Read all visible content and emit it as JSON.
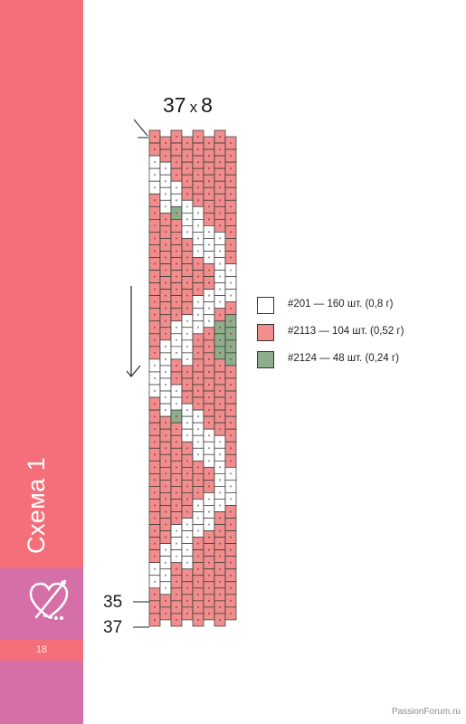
{
  "sidebar": {
    "title": "Схема 1",
    "page_number": "18"
  },
  "scheme": {
    "size_width": "37",
    "size_x": "x",
    "size_height": "8",
    "row_labels": [
      "35",
      "37"
    ]
  },
  "legend": [
    {
      "code": "#201",
      "text": "#201 — 160 шт. (0,8 г)",
      "color": "#ffffff"
    },
    {
      "code": "#2113",
      "text": "#2113 — 104 шт. (0,52 г)",
      "color": "#f08e8e"
    },
    {
      "code": "#2124",
      "text": "#2124 — 48 шт. (0,24 г)",
      "color": "#8dae8a"
    }
  ],
  "colors": {
    "pink": "#f08e8e",
    "white": "#ffffff",
    "green": "#8dae8a",
    "sidebar_pink": "#f46f7a",
    "sidebar_purple": "#d56fa8"
  },
  "icons": [
    "heart-needle-icon",
    "arrow-down-icon"
  ],
  "watermark": "PassionForum.ru"
}
